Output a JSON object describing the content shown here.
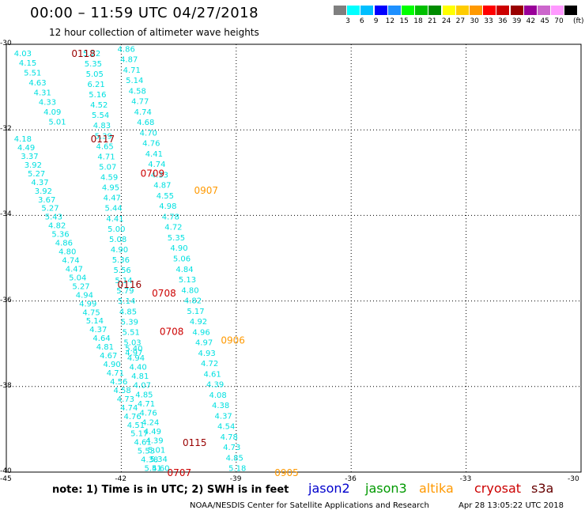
{
  "header": {
    "title": "00:00 – 11:59 UTC 04/27/2018",
    "subtitle": "12 hour collection of altimeter wave heights"
  },
  "colorbar": {
    "colors": [
      "#7f7f7f",
      "#00ffff",
      "#00bfff",
      "#0000ff",
      "#1e90ff",
      "#00ff00",
      "#00c000",
      "#008c00",
      "#ffff00",
      "#ffcc00",
      "#ff9900",
      "#ff0000",
      "#cc0000",
      "#990000",
      "#990099",
      "#cc66cc",
      "#ff99ff",
      "#000000"
    ],
    "labels": [
      "3",
      "6",
      "9",
      "12",
      "15",
      "18",
      "21",
      "24",
      "27",
      "30",
      "33",
      "36",
      "39",
      "42",
      "45",
      "70"
    ],
    "unit": "(ft)"
  },
  "axes": {
    "y_ticks": [
      "-30",
      "-32",
      "-34",
      "-36",
      "-38",
      "-40"
    ],
    "x_ticks": [
      "-45",
      "-42",
      "-39",
      "-36",
      "-33",
      "-30"
    ]
  },
  "chart_data": {
    "type": "scatter",
    "value_color": "#00e0e0",
    "x_unit": "longitude",
    "y_unit": "latitude",
    "xlim": [
      -45,
      -30
    ],
    "ylim": [
      -40,
      -30
    ],
    "tracks": [
      {
        "values": [
          "4.03",
          "4.15",
          "5.51",
          "4.63",
          "4.31",
          "4.33",
          "4.09",
          "5.01"
        ],
        "lon_start": -44.8,
        "lat_start": -30.2,
        "lon_end": -43.9,
        "lat_end": -31.8
      },
      {
        "values": [
          "5.22",
          "5.35",
          "5.05",
          "6.21",
          "5.16",
          "4.52",
          "5.54",
          "4.83",
          "5.39",
          "4.65",
          "4.71",
          "5.07",
          "4.59",
          "4.95",
          "4.47",
          "5.44",
          "4.41",
          "5.00",
          "5.08",
          "4.90",
          "5.36",
          "5.56",
          "5.14",
          "5.79",
          "5.14",
          "4.85",
          "5.39",
          "5.51",
          "5.03",
          "4.97"
        ],
        "lon_start": -43.0,
        "lat_start": -30.2,
        "lon_end": -41.9,
        "lat_end": -37.2
      },
      {
        "values": [
          "4.86",
          "4.87",
          "4.71",
          "5.14",
          "4.58",
          "4.77",
          "4.74",
          "4.68",
          "4.70",
          "4.76",
          "4.41",
          "4.74",
          "4.33",
          "4.87",
          "4.55",
          "4.98",
          "4.78",
          "4.72",
          "5.35",
          "4.90",
          "5.06",
          "4.84",
          "5.13",
          "4.80",
          "4.82",
          "5.17",
          "4.92",
          "4.96",
          "4.97",
          "4.93",
          "4.72",
          "4.61",
          "4.39",
          "4.08",
          "4.38",
          "4.37",
          "4.54",
          "4.78",
          "4.73",
          "4.85",
          "5.18"
        ],
        "lon_start": -42.1,
        "lat_start": -30.1,
        "lon_end": -39.2,
        "lat_end": -39.9
      },
      {
        "values": [
          "4.18",
          "4.49",
          "3.37",
          "3.92",
          "5.27",
          "4.37",
          "3.92",
          "3.67",
          "5.27",
          "5.43",
          "4.82",
          "5.36",
          "4.86",
          "4.80",
          "4.74",
          "4.47",
          "5.04",
          "5.27",
          "4.94",
          "4.99",
          "4.75",
          "5.14",
          "4.37",
          "4.64",
          "4.81",
          "4.67",
          "4.90",
          "4.71",
          "4.56",
          "4.58",
          "4.73",
          "4.74",
          "4.76",
          "4.51",
          "5.17",
          "4.61",
          "5.53",
          "4.38",
          "5.51"
        ],
        "lon_start": -44.8,
        "lat_start": -32.2,
        "lon_end": -41.4,
        "lat_end": -39.9
      },
      {
        "values": [
          "5.40",
          "4.94",
          "4.40",
          "4.81",
          "4.07",
          "4.85",
          "4.71",
          "4.76",
          "4.24",
          "4.49",
          "4.39",
          "5.01",
          "5.34",
          "4.60"
        ],
        "lon_start": -41.9,
        "lat_start": -37.1,
        "lon_end": -41.2,
        "lat_end": -39.9
      }
    ],
    "time_labels": [
      {
        "text": "0118",
        "color": "#990000",
        "lon": -43.3,
        "lat": -30.2
      },
      {
        "text": "0117",
        "color": "#990000",
        "lon": -42.8,
        "lat": -32.2
      },
      {
        "text": "0709",
        "color": "#cc0000",
        "lon": -41.5,
        "lat": -33.0
      },
      {
        "text": "0907",
        "color": "#ff9900",
        "lon": -40.1,
        "lat": -33.4
      },
      {
        "text": "0116",
        "color": "#990000",
        "lon": -42.1,
        "lat": -35.6
      },
      {
        "text": "0708",
        "color": "#cc0000",
        "lon": -41.2,
        "lat": -35.8
      },
      {
        "text": "0708",
        "color": "#cc0000",
        "lon": -41.0,
        "lat": -36.7
      },
      {
        "text": "0906",
        "color": "#ff9900",
        "lon": -39.4,
        "lat": -36.9
      },
      {
        "text": "0115",
        "color": "#990000",
        "lon": -40.4,
        "lat": -39.3
      },
      {
        "text": "0707",
        "color": "#cc0000",
        "lon": -40.8,
        "lat": -40.0
      },
      {
        "text": "0905",
        "color": "#ff9900",
        "lon": -38.0,
        "lat": -40.0
      }
    ]
  },
  "note": "note: 1) Time is in UTC; 2) SWH is in feet",
  "legend": [
    {
      "name": "jason2",
      "color": "#0000cc"
    },
    {
      "name": "jason3",
      "color": "#009900"
    },
    {
      "name": "altika",
      "color": "#ff9900"
    },
    {
      "name": "cryosat",
      "color": "#cc0000"
    },
    {
      "name": "s3a",
      "color": "#660000"
    }
  ],
  "footer": {
    "credit": "NOAA/NESDIS Center for Satellite Applications and Research",
    "timestamp": "Apr 28 13:05:22 UTC 2018"
  }
}
